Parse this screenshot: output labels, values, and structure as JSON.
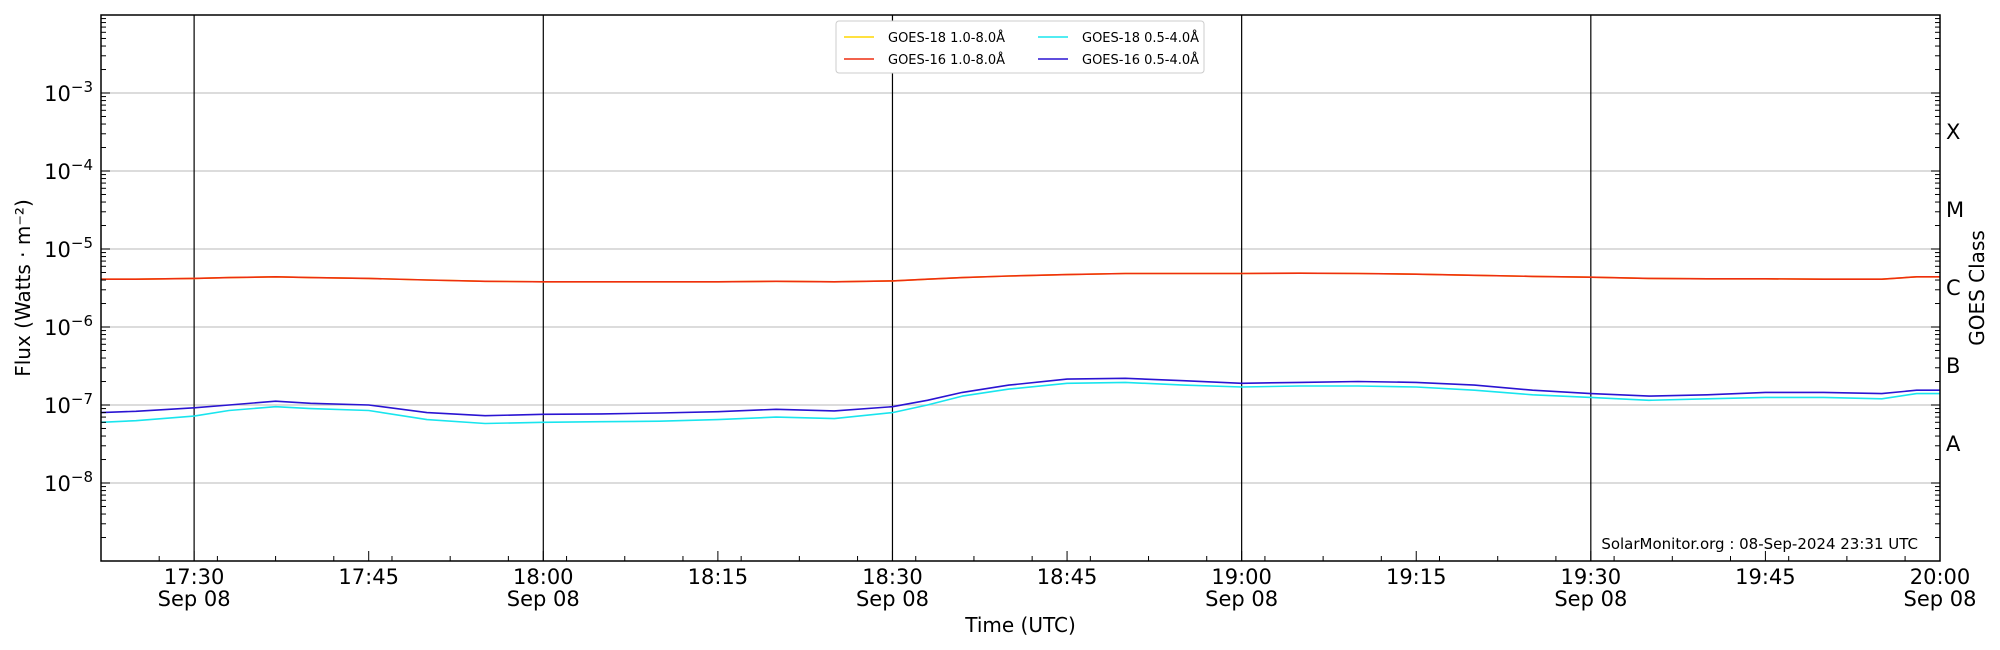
{
  "chart_data": {
    "type": "line",
    "title": "",
    "xlabel": "Time (UTC)",
    "ylabel": "Flux (Watts · m⁻²)",
    "y2label": "GOES Class",
    "yscale": "log",
    "ylim": [
      1e-09,
      0.01
    ],
    "xlim": [
      "2024-09-08T17:22",
      "2024-09-08T20:00"
    ],
    "grid": "horizontal",
    "legend_position": "top-center",
    "credit": "SolarMonitor.org : 08-Sep-2024 23:31 UTC",
    "y_ticks": [
      {
        "value": 1e-08,
        "base": "10",
        "exp": "−8"
      },
      {
        "value": 1e-07,
        "base": "10",
        "exp": "−7"
      },
      {
        "value": 1e-06,
        "base": "10",
        "exp": "−6"
      },
      {
        "value": 1e-05,
        "base": "10",
        "exp": "−5"
      },
      {
        "value": 0.0001,
        "base": "10",
        "exp": "−4"
      },
      {
        "value": 0.001,
        "base": "10",
        "exp": "−3"
      }
    ],
    "goes_classes": [
      {
        "label": "A",
        "value": 3.16e-08
      },
      {
        "label": "B",
        "value": 3.16e-07
      },
      {
        "label": "C",
        "value": 3.16e-06
      },
      {
        "label": "M",
        "value": 3.16e-05
      },
      {
        "label": "X",
        "value": 0.000316
      }
    ],
    "x_ticks": [
      {
        "time": "2024-09-08T17:30",
        "label": "17:30",
        "sublabel": "Sep 08",
        "major": true
      },
      {
        "time": "2024-09-08T17:45",
        "label": "17:45",
        "sublabel": "",
        "major": false
      },
      {
        "time": "2024-09-08T18:00",
        "label": "18:00",
        "sublabel": "Sep 08",
        "major": true
      },
      {
        "time": "2024-09-08T18:15",
        "label": "18:15",
        "sublabel": "",
        "major": false
      },
      {
        "time": "2024-09-08T18:30",
        "label": "18:30",
        "sublabel": "Sep 08",
        "major": true
      },
      {
        "time": "2024-09-08T18:45",
        "label": "18:45",
        "sublabel": "",
        "major": false
      },
      {
        "time": "2024-09-08T19:00",
        "label": "19:00",
        "sublabel": "Sep 08",
        "major": true
      },
      {
        "time": "2024-09-08T19:15",
        "label": "19:15",
        "sublabel": "",
        "major": false
      },
      {
        "time": "2024-09-08T19:30",
        "label": "19:30",
        "sublabel": "Sep 08",
        "major": true
      },
      {
        "time": "2024-09-08T19:45",
        "label": "19:45",
        "sublabel": "",
        "major": false
      },
      {
        "time": "2024-09-08T20:00",
        "label": "20:00",
        "sublabel": "Sep 08",
        "major": false
      }
    ],
    "x": [
      "2024-09-08T17:22",
      "2024-09-08T17:25",
      "2024-09-08T17:30",
      "2024-09-08T17:33",
      "2024-09-08T17:37",
      "2024-09-08T17:40",
      "2024-09-08T17:45",
      "2024-09-08T17:50",
      "2024-09-08T17:55",
      "2024-09-08T18:00",
      "2024-09-08T18:05",
      "2024-09-08T18:10",
      "2024-09-08T18:15",
      "2024-09-08T18:20",
      "2024-09-08T18:25",
      "2024-09-08T18:30",
      "2024-09-08T18:33",
      "2024-09-08T18:36",
      "2024-09-08T18:40",
      "2024-09-08T18:45",
      "2024-09-08T18:50",
      "2024-09-08T18:55",
      "2024-09-08T19:00",
      "2024-09-08T19:05",
      "2024-09-08T19:10",
      "2024-09-08T19:15",
      "2024-09-08T19:20",
      "2024-09-08T19:25",
      "2024-09-08T19:30",
      "2024-09-08T19:35",
      "2024-09-08T19:40",
      "2024-09-08T19:45",
      "2024-09-08T19:50",
      "2024-09-08T19:55",
      "2024-09-08T19:58",
      "2024-09-08T20:00"
    ],
    "series": [
      {
        "name": "GOES-18 1.0-8.0Å",
        "color": "#ffd700",
        "values": [
          4.1e-06,
          4.1e-06,
          4.2e-06,
          4.3e-06,
          4.4e-06,
          4.3e-06,
          4.2e-06,
          4e-06,
          3.85e-06,
          3.8e-06,
          3.8e-06,
          3.8e-06,
          3.8e-06,
          3.85e-06,
          3.8e-06,
          3.9e-06,
          4.1e-06,
          4.3e-06,
          4.5e-06,
          4.7e-06,
          4.85e-06,
          4.85e-06,
          4.85e-06,
          4.9e-06,
          4.85e-06,
          4.75e-06,
          4.6e-06,
          4.45e-06,
          4.35e-06,
          4.2e-06,
          4.15e-06,
          4.15e-06,
          4.1e-06,
          4.1e-06,
          4.4e-06,
          4.4e-06
        ]
      },
      {
        "name": "GOES-16 1.0-8.0Å",
        "color": "#ee2e10",
        "values": [
          4.1e-06,
          4.1e-06,
          4.2e-06,
          4.3e-06,
          4.4e-06,
          4.3e-06,
          4.2e-06,
          4e-06,
          3.85e-06,
          3.8e-06,
          3.8e-06,
          3.8e-06,
          3.8e-06,
          3.85e-06,
          3.8e-06,
          3.9e-06,
          4.1e-06,
          4.3e-06,
          4.5e-06,
          4.7e-06,
          4.85e-06,
          4.85e-06,
          4.85e-06,
          4.9e-06,
          4.85e-06,
          4.75e-06,
          4.6e-06,
          4.45e-06,
          4.35e-06,
          4.2e-06,
          4.15e-06,
          4.15e-06,
          4.1e-06,
          4.1e-06,
          4.4e-06,
          4.4e-06
        ]
      },
      {
        "name": "GOES-18 0.5-4.0Å",
        "color": "#19e5ee",
        "values": [
          6e-08,
          6.3e-08,
          7.2e-08,
          8.5e-08,
          9.5e-08,
          9e-08,
          8.5e-08,
          6.5e-08,
          5.8e-08,
          6e-08,
          6.1e-08,
          6.2e-08,
          6.5e-08,
          7e-08,
          6.7e-08,
          8e-08,
          1e-07,
          1.3e-07,
          1.6e-07,
          1.9e-07,
          1.95e-07,
          1.8e-07,
          1.7e-07,
          1.75e-07,
          1.75e-07,
          1.7e-07,
          1.55e-07,
          1.35e-07,
          1.25e-07,
          1.15e-07,
          1.2e-07,
          1.25e-07,
          1.25e-07,
          1.2e-07,
          1.4e-07,
          1.4e-07
        ]
      },
      {
        "name": "GOES-16 0.5-4.0Å",
        "color": "#2a14d2",
        "values": [
          8e-08,
          8.3e-08,
          9.2e-08,
          1e-07,
          1.12e-07,
          1.05e-07,
          1e-07,
          8e-08,
          7.3e-08,
          7.6e-08,
          7.7e-08,
          7.9e-08,
          8.2e-08,
          8.8e-08,
          8.4e-08,
          9.5e-08,
          1.15e-07,
          1.45e-07,
          1.8e-07,
          2.15e-07,
          2.2e-07,
          2.05e-07,
          1.9e-07,
          1.95e-07,
          2e-07,
          1.95e-07,
          1.8e-07,
          1.55e-07,
          1.4e-07,
          1.3e-07,
          1.35e-07,
          1.45e-07,
          1.45e-07,
          1.4e-07,
          1.55e-07,
          1.55e-07
        ]
      }
    ]
  }
}
